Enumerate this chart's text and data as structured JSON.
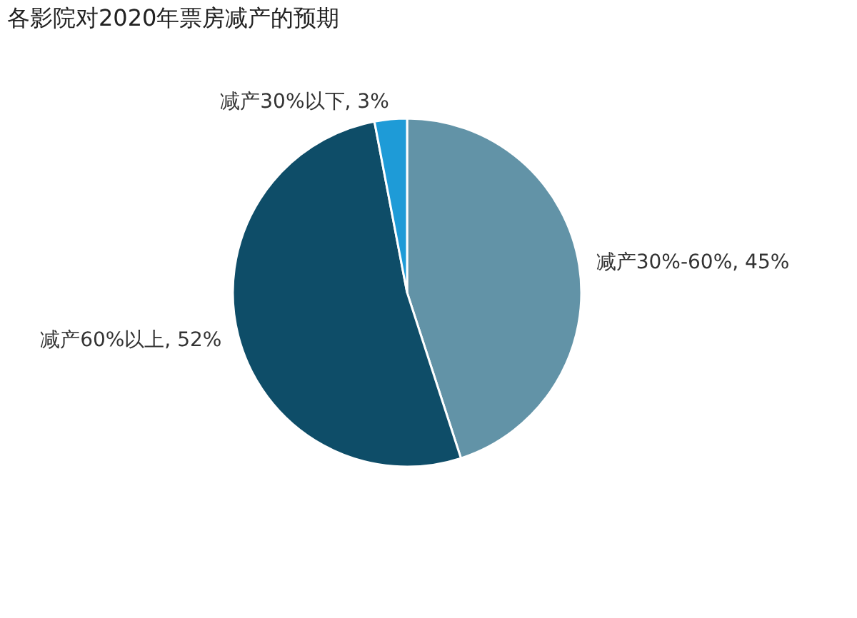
{
  "chart_data": {
    "type": "pie",
    "title": "各影院对2020年票房减产的预期",
    "categories": [
      "减产30%-60%",
      "减产60%以上",
      "减产30%以下"
    ],
    "values": [
      45,
      52,
      3
    ],
    "value_labels": [
      "45%",
      "52%",
      "3%"
    ],
    "colors": [
      "#6293a7",
      "#0e4d68",
      "#1e9bd7"
    ],
    "legend": false
  }
}
